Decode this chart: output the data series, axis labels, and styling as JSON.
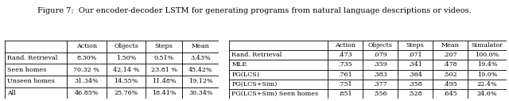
{
  "caption": "Figure 7:  Our encoder-decoder LSTM for generating programs from natural language descriptions or videos.",
  "table1": {
    "col_headers": [
      "",
      "Action",
      "Objects",
      "Steps",
      "Mean"
    ],
    "rows": [
      [
        "Rand. Retrieval",
        "8.30%",
        "1.50%",
        "0.51%",
        "3.43%"
      ],
      [
        "Seen homes",
        "70.32 %",
        "42.14 %",
        "23.81 %",
        "45.42%"
      ],
      [
        "Unseen homes",
        "31.34%",
        "14.55%",
        "11.48%",
        "19.12%"
      ],
      [
        "All",
        "46.85%",
        "25.76%",
        "18.41%",
        "30.34%"
      ]
    ]
  },
  "table2": {
    "col_headers": [
      "",
      "Action",
      "Objects",
      "Steps",
      "Mean",
      "Simulator"
    ],
    "rows": [
      [
        "Rand. Retrieval",
        ".473",
        ".079",
        ".071",
        ".207",
        "100.0%"
      ],
      [
        "MLE",
        ".735",
        ".359",
        ".341",
        ".478",
        "19.4%"
      ],
      [
        "PG(LCS)",
        ".761",
        ".383",
        ".364",
        ".502",
        "19.0%"
      ],
      [
        "PG(LCS+Sim)",
        ".751",
        ".377",
        ".358",
        ".495",
        "22.4%"
      ],
      [
        "PG(LCS+Sim) Seen homes",
        ".851",
        ".556",
        ".528",
        ".645",
        "24.6%"
      ]
    ]
  },
  "fig_width": 6.4,
  "fig_height": 1.27,
  "caption_fontsize": 7.0,
  "table_fontsize": 5.8
}
